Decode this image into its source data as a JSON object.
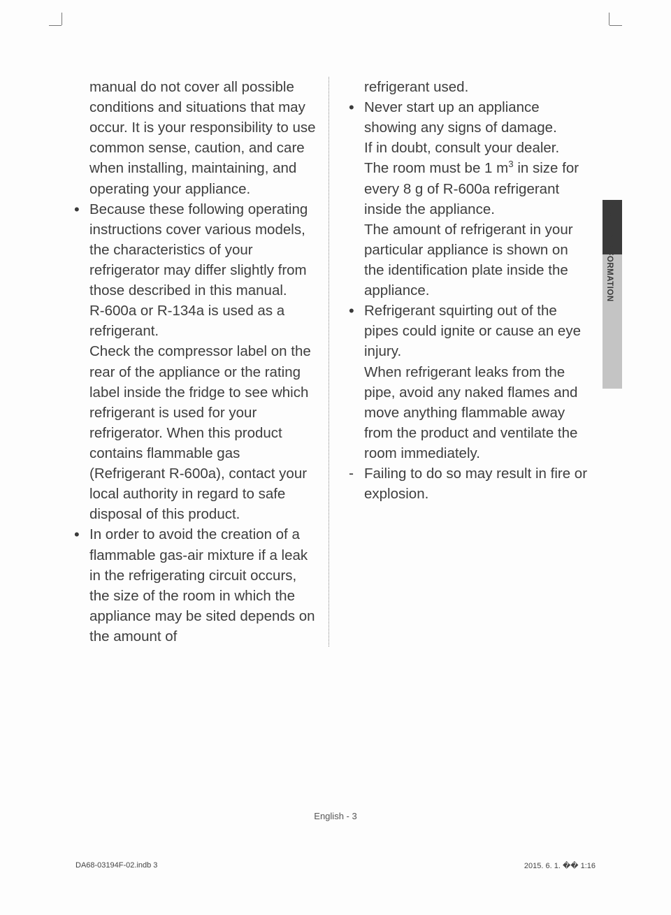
{
  "side_tab": {
    "label": "SAFETY INFORMATION"
  },
  "left_col": {
    "para0": "manual do not cover all possible conditions and situations that may occur. It is your responsibility to use common sense, caution, and care when installing, maintaining, and operating your appliance.",
    "bullet1_a": "Because these following operating instructions cover various models, the characteristics of your refrigerator may differ slightly from those described in this manual.",
    "bullet1_b": "R-600a or R-134a is used as a refrigerant.",
    "bullet1_c": "Check the compressor label on the rear of the appliance or the rating label inside the fridge to see which refrigerant is used for your refrigerator. When this product contains flammable gas (Refrigerant R-600a), contact your local authority in regard to safe disposal of this product.",
    "bullet2": "In order to avoid the creation of a flammable gas-air mixture if a leak in the refrigerating circuit occurs, the size of the room in which the appliance may be sited depends on the amount of"
  },
  "right_col": {
    "para0": "refrigerant used.",
    "bullet1_a": "Never start up an appliance showing any signs of damage.",
    "bullet1_b": "If in doubt, consult your dealer.",
    "bullet1_c_pre": "The room must be 1 m",
    "bullet1_c_sup": "3",
    "bullet1_c_post": " in size for every 8 g of R-600a refrigerant inside the appliance.",
    "bullet1_d": "The amount of refrigerant in your particular appliance is shown on the identification plate inside the appliance.",
    "bullet2_a": "Refrigerant squirting out of the pipes could ignite or cause an eye injury.",
    "bullet2_b": "When refrigerant leaks from the pipe, avoid any naked flames and move anything flammable away from the product and ventilate the room immediately.",
    "dash1": "Failing to do so may result in fire or explosion."
  },
  "footer": {
    "center": "English - 3",
    "left": "DA68-03194F-02.indb   3",
    "right": "2015. 6. 1.   �� 1:16"
  },
  "colors": {
    "text": "#3e3e3e",
    "tab_dark": "#3a3a3a",
    "tab_light": "#c4c4c4",
    "crop": "#777"
  }
}
